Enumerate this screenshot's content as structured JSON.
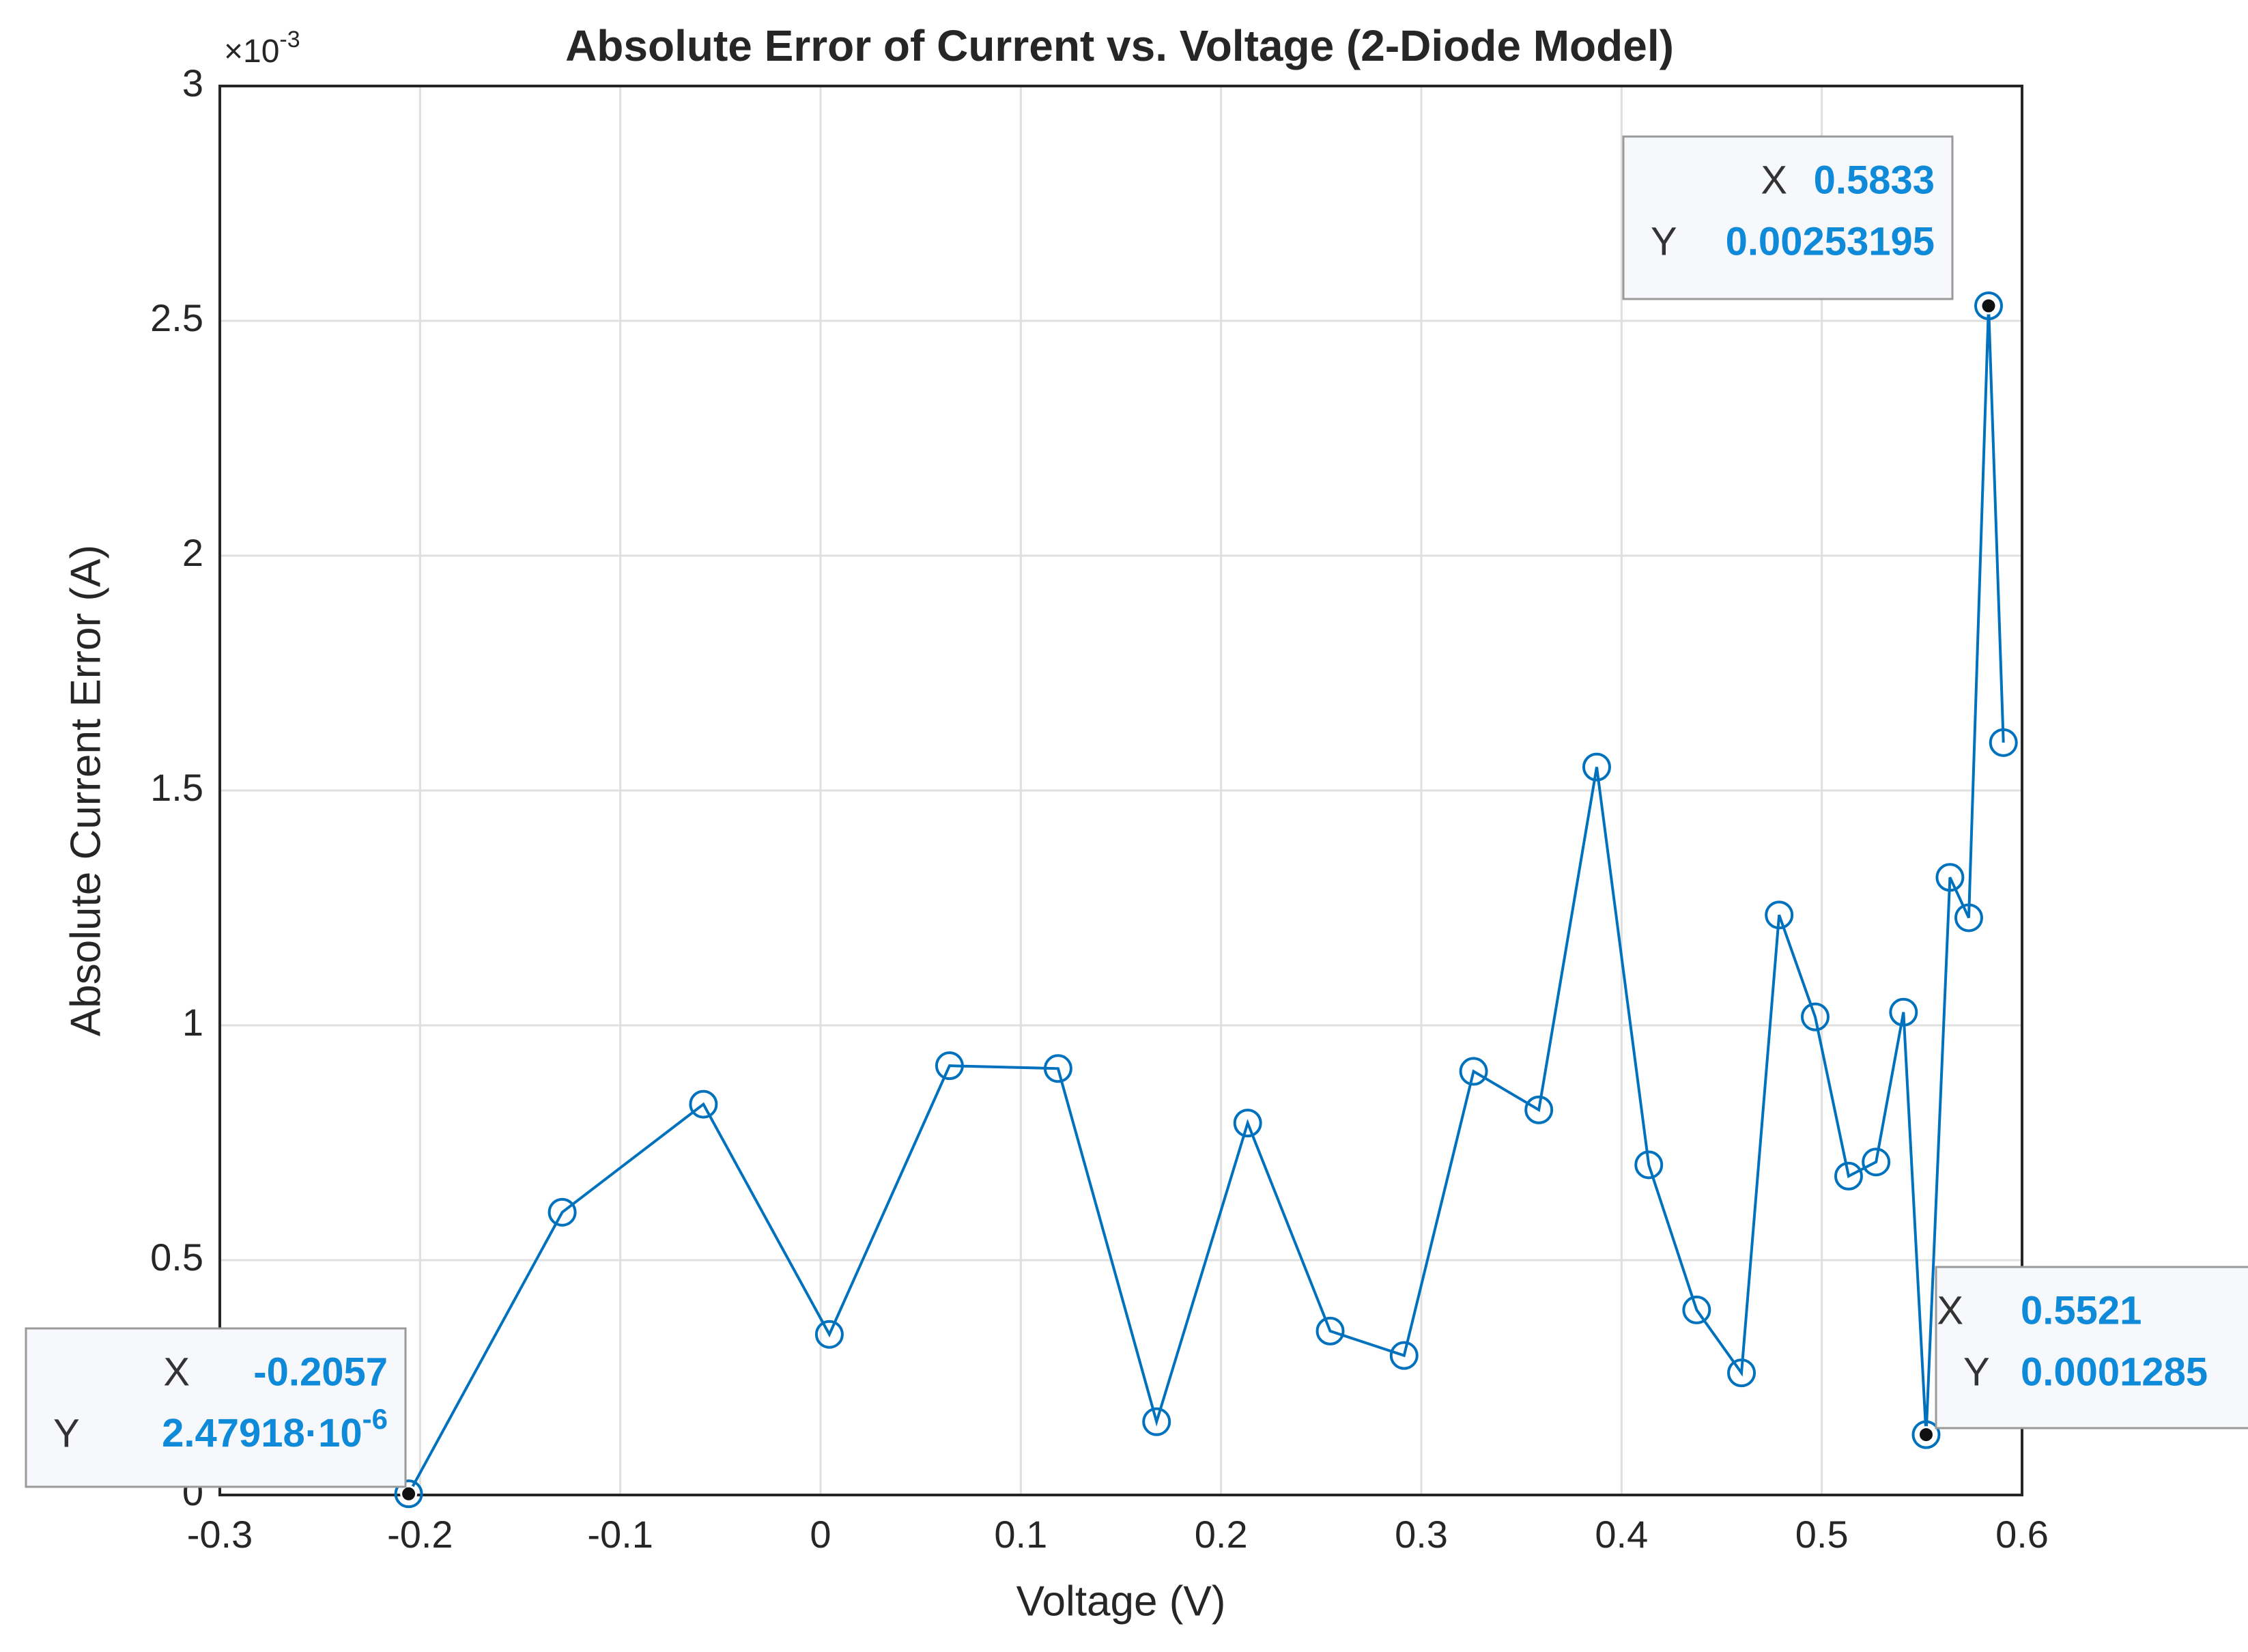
{
  "chart_data": {
    "type": "line",
    "title": "Absolute Error of Current vs. Voltage (2-Diode Model)",
    "xlabel": "Voltage (V)",
    "ylabel": "Absolute Current Error (A)",
    "y_multiplier": {
      "base": "×10",
      "exponent": "-3"
    },
    "xlim": [
      -0.3,
      0.6
    ],
    "xticks": [
      -0.3,
      -0.2,
      -0.1,
      0,
      0.1,
      0.2,
      0.3,
      0.4,
      0.5,
      0.6
    ],
    "ylim": [
      0,
      0.003
    ],
    "yticks": [
      {
        "value": 0,
        "label": "0"
      },
      {
        "value": 0.0005,
        "label": "0.5"
      },
      {
        "value": 0.001,
        "label": "1"
      },
      {
        "value": 0.0015,
        "label": "1.5"
      },
      {
        "value": 0.002,
        "label": "2"
      },
      {
        "value": 0.0025,
        "label": "2.5"
      },
      {
        "value": 0.003,
        "label": "3"
      }
    ],
    "grid": true,
    "series": [
      {
        "color": "#0072bd",
        "marker": "circle",
        "x": [
          -0.2057,
          -0.129,
          -0.0585,
          0.0044,
          0.0644,
          0.1186,
          0.1678,
          0.2133,
          0.2545,
          0.2914,
          0.3261,
          0.3587,
          0.3876,
          0.4136,
          0.4375,
          0.4599,
          0.4787,
          0.4967,
          0.5134,
          0.5271,
          0.5408,
          0.5521,
          0.564,
          0.5734,
          0.5833,
          0.5907
        ],
        "values": [
          2.47918e-06,
          0.000602,
          0.000832,
          0.000342,
          0.000914,
          0.000908,
          0.000156,
          0.000792,
          0.000349,
          0.000297,
          0.000902,
          0.00082,
          0.00155,
          0.000703,
          0.000394,
          0.00026,
          0.001235,
          0.001018,
          0.000679,
          0.000709,
          0.001028,
          0.0001285,
          0.001315,
          0.001229,
          0.00253195,
          0.001602
        ]
      }
    ],
    "annotations": [
      {
        "x_key": "X",
        "y_key": "Y",
        "x": -0.2057,
        "y": {
          "value": 2.47918e-06,
          "label": "2.47918·10",
          "exponent": "-6"
        }
      },
      {
        "x_key": "X",
        "y_key": "Y",
        "x": 0.5833,
        "y": 0.00253195
      },
      {
        "x_key": "X",
        "y_key": "Y",
        "x": 0.5521,
        "y": 0.0001285
      }
    ]
  }
}
